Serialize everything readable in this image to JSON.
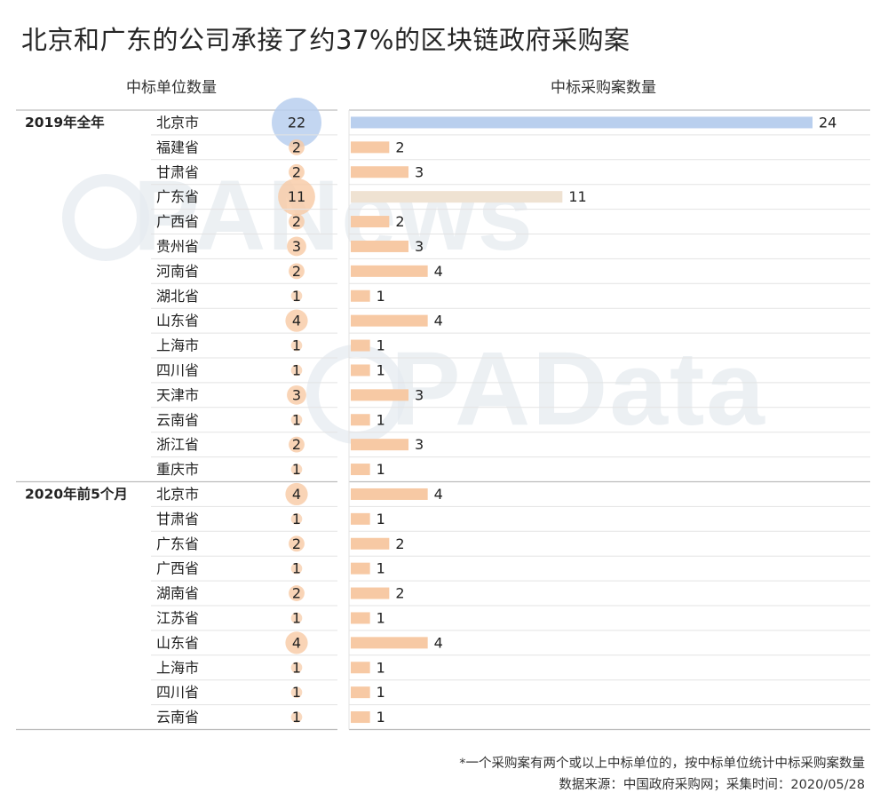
{
  "title": "北京和广东的公司承接了约37%的区块链政府采购案",
  "left_header": "中标单位数量",
  "right_header": "中标采购案数量",
  "watermarks": [
    "PANews",
    "PAData"
  ],
  "footnote": "*一个采购案有两个或以上中标单位的，按中标单位统计中标采购案数量",
  "source": "数据来源：中国政府采购网；采集时间：2020/05/28",
  "colors": {
    "highlight": "#b9cfee",
    "bar": "#f7c9a4",
    "grid": "#e3e3e3",
    "group_line": "#bdbdbd"
  },
  "chart_data": {
    "type": "bar",
    "orientation": "horizontal",
    "title": "北京和广东的公司承接了约37%的区块链政府采购案",
    "measures": [
      "中标单位数量",
      "中标采购案数量"
    ],
    "groups": [
      {
        "name": "2019年全年",
        "rows": [
          {
            "province": "北京市",
            "units": 22,
            "cases": 24
          },
          {
            "province": "福建省",
            "units": 2,
            "cases": 2
          },
          {
            "province": "甘肃省",
            "units": 2,
            "cases": 3
          },
          {
            "province": "广东省",
            "units": 11,
            "cases": 11
          },
          {
            "province": "广西省",
            "units": 2,
            "cases": 2
          },
          {
            "province": "贵州省",
            "units": 3,
            "cases": 3
          },
          {
            "province": "河南省",
            "units": 2,
            "cases": 4
          },
          {
            "province": "湖北省",
            "units": 1,
            "cases": 1
          },
          {
            "province": "山东省",
            "units": 4,
            "cases": 4
          },
          {
            "province": "上海市",
            "units": 1,
            "cases": 1
          },
          {
            "province": "四川省",
            "units": 1,
            "cases": 1
          },
          {
            "province": "天津市",
            "units": 3,
            "cases": 3
          },
          {
            "province": "云南省",
            "units": 1,
            "cases": 1
          },
          {
            "province": "浙江省",
            "units": 2,
            "cases": 3
          },
          {
            "province": "重庆市",
            "units": 1,
            "cases": 1
          }
        ]
      },
      {
        "name": "2020年前5个月",
        "rows": [
          {
            "province": "北京市",
            "units": 4,
            "cases": 4
          },
          {
            "province": "甘肃省",
            "units": 1,
            "cases": 1
          },
          {
            "province": "广东省",
            "units": 2,
            "cases": 2
          },
          {
            "province": "广西省",
            "units": 1,
            "cases": 1
          },
          {
            "province": "湖南省",
            "units": 2,
            "cases": 2
          },
          {
            "province": "江苏省",
            "units": 1,
            "cases": 1
          },
          {
            "province": "山东省",
            "units": 4,
            "cases": 4
          },
          {
            "province": "上海市",
            "units": 1,
            "cases": 1
          },
          {
            "province": "四川省",
            "units": 1,
            "cases": 1
          },
          {
            "province": "云南省",
            "units": 1,
            "cases": 1
          }
        ]
      }
    ],
    "xlim": [
      0,
      24
    ],
    "highlight": [
      {
        "group": "2019年全年",
        "province": "北京市"
      },
      {
        "group": "2019年全年",
        "province": "广东省"
      }
    ]
  }
}
